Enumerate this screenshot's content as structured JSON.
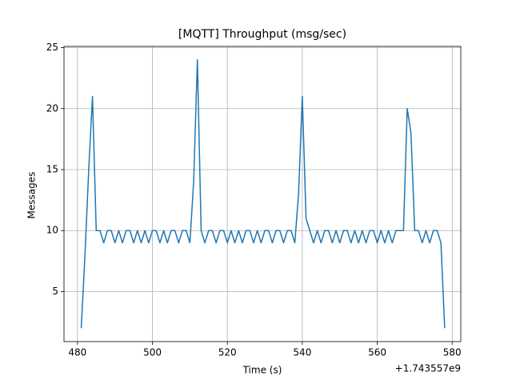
{
  "chart_data": {
    "type": "line",
    "title": "[MQTT] Throughput (msg/sec)",
    "x_label": "Time (s)",
    "y_label": "Messages",
    "x_offset_label": "+1.743557e9",
    "x": [
      481,
      482,
      483,
      484,
      485,
      486,
      487,
      488,
      489,
      490,
      491,
      492,
      493,
      494,
      495,
      496,
      497,
      498,
      499,
      500,
      501,
      502,
      503,
      504,
      505,
      506,
      507,
      508,
      509,
      510,
      511,
      512,
      513,
      514,
      515,
      516,
      517,
      518,
      519,
      520,
      521,
      522,
      523,
      524,
      525,
      526,
      527,
      528,
      529,
      530,
      531,
      532,
      533,
      534,
      535,
      536,
      537,
      538,
      539,
      540,
      541,
      542,
      543,
      544,
      545,
      546,
      547,
      548,
      549,
      550,
      551,
      552,
      553,
      554,
      555,
      556,
      557,
      558,
      559,
      560,
      561,
      562,
      563,
      564,
      565,
      566,
      567,
      568,
      569,
      570,
      571,
      572,
      573,
      574,
      575,
      576,
      577,
      578
    ],
    "series": [
      {
        "name": "Throughput",
        "color": "#1f77b4",
        "values": [
          2,
          8,
          15,
          21,
          10,
          10,
          9,
          10,
          10,
          9,
          10,
          9,
          10,
          10,
          9,
          10,
          9,
          10,
          9,
          10,
          10,
          9,
          10,
          9,
          10,
          10,
          9,
          10,
          10,
          9,
          14,
          24,
          10,
          9,
          10,
          10,
          9,
          10,
          10,
          9,
          10,
          9,
          10,
          9,
          10,
          10,
          9,
          10,
          9,
          10,
          10,
          9,
          10,
          10,
          9,
          10,
          10,
          9,
          13,
          21,
          11,
          10,
          9,
          10,
          9,
          10,
          10,
          9,
          10,
          9,
          10,
          10,
          9,
          10,
          9,
          10,
          9,
          10,
          10,
          9,
          10,
          9,
          10,
          9,
          10,
          10,
          10,
          20,
          18,
          10,
          10,
          9,
          10,
          9,
          10,
          10,
          9,
          2
        ]
      }
    ],
    "xlim": [
      476.4,
      582.3
    ],
    "ylim": [
      0.9,
      25.1
    ],
    "xticks": [
      480,
      500,
      520,
      540,
      560,
      580
    ],
    "yticks": [
      5,
      10,
      15,
      20,
      25
    ],
    "grid": true
  }
}
